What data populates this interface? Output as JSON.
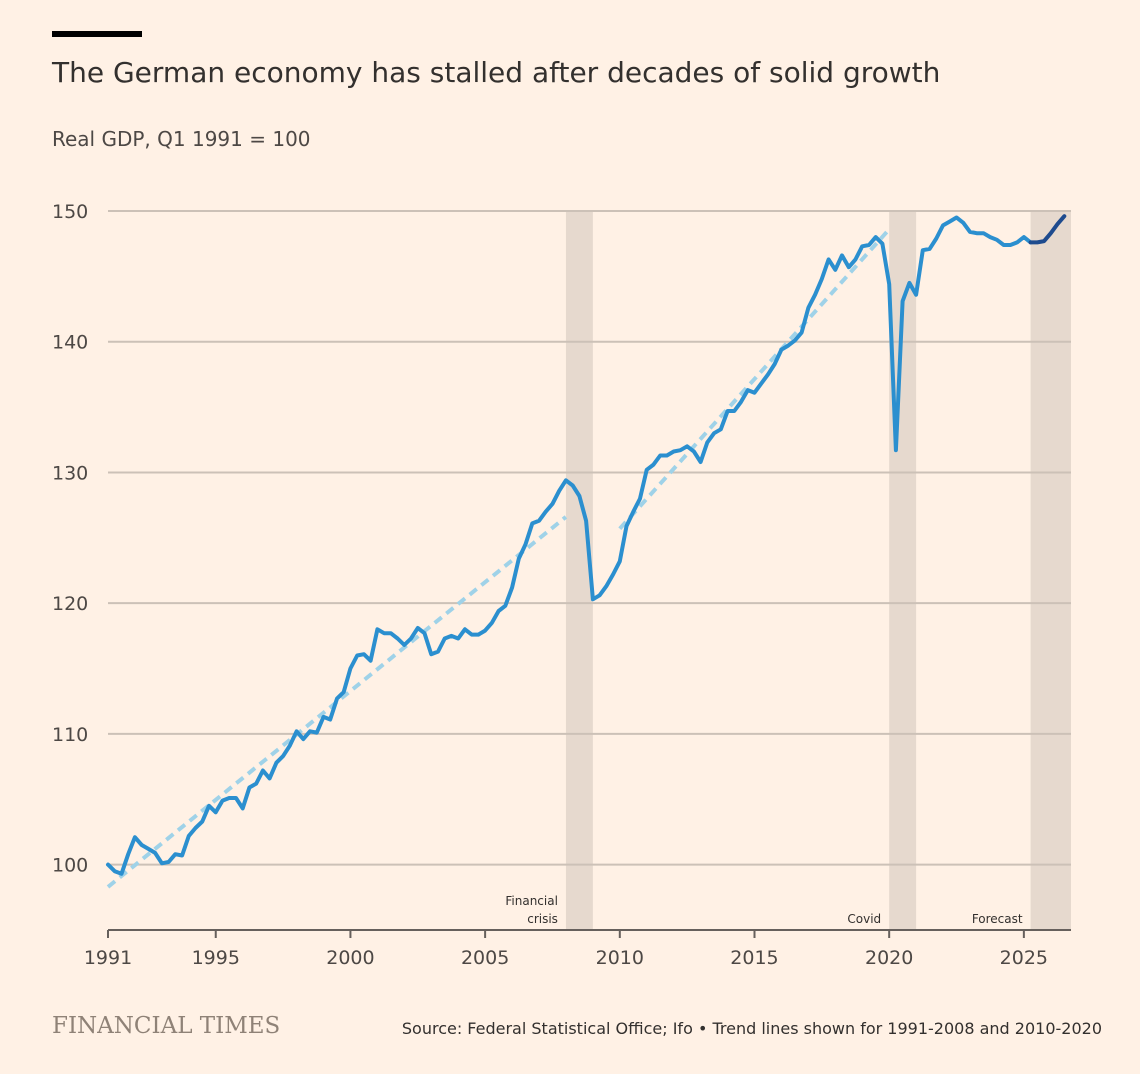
{
  "header": {
    "title": "The German economy has stalled after decades of solid growth",
    "subtitle": "Real GDP, Q1 1991 = 100"
  },
  "footer": {
    "brand": "FINANCIAL TIMES",
    "source": "Source: Federal Statistical Office; Ifo • Trend lines shown for 1991-2008 and 2010-2020"
  },
  "colors": {
    "background": "#fff1e5",
    "gridline": "#ccc1b7",
    "series": "#2b8fcf",
    "forecast_series": "#1e4b8e",
    "trend": "#9fd2e8",
    "shade": "#e6d9ce",
    "text": "#33302e"
  },
  "chart_data": {
    "type": "line",
    "title": "The German economy has stalled after decades of solid growth",
    "subtitle": "Real GDP, Q1 1991 = 100",
    "xlabel": "",
    "ylabel": "",
    "xlim": [
      1991,
      2026.75
    ],
    "ylim": [
      95,
      150
    ],
    "x_ticks": [
      "1991",
      "1995",
      "2000",
      "2005",
      "2010",
      "2015",
      "2020",
      "2025"
    ],
    "y_ticks": [
      "100",
      "110",
      "120",
      "130",
      "140",
      "150"
    ],
    "grid": true,
    "shaded_periods": [
      {
        "label": "Financial crisis",
        "start": 2008.0,
        "end": 2009.0
      },
      {
        "label": "Covid",
        "start": 2020.0,
        "end": 2021.0
      },
      {
        "label": "Forecast",
        "start": 2025.25,
        "end": 2026.75
      }
    ],
    "series": [
      {
        "x": [
          1991.0,
          1991.25,
          1991.5,
          1991.75,
          1992.0,
          1992.25,
          1992.5,
          1992.75,
          1993.0,
          1993.25,
          1993.5,
          1993.75,
          1994.0,
          1994.25,
          1994.5,
          1994.75,
          1995.0,
          1995.25,
          1995.5,
          1995.75,
          1996.0,
          1996.25,
          1996.5,
          1996.75,
          1997.0,
          1997.25,
          1997.5,
          1997.75,
          1998.0,
          1998.25,
          1998.5,
          1998.75,
          1999.0,
          1999.25,
          1999.5,
          1999.75,
          2000.0,
          2000.25,
          2000.5,
          2000.75,
          2001.0,
          2001.25,
          2001.5,
          2001.75,
          2002.0,
          2002.25,
          2002.5,
          2002.75,
          2003.0,
          2003.25,
          2003.5,
          2003.75,
          2004.0,
          2004.25,
          2004.5,
          2004.75,
          2005.0,
          2005.25,
          2005.5,
          2005.75,
          2006.0,
          2006.25,
          2006.5,
          2006.75,
          2007.0,
          2007.25,
          2007.5,
          2007.75,
          2008.0,
          2008.25,
          2008.5,
          2008.75,
          2009.0,
          2009.25,
          2009.5,
          2009.75,
          2010.0,
          2010.25,
          2010.5,
          2010.75,
          2011.0,
          2011.25,
          2011.5,
          2011.75,
          2012.0,
          2012.25,
          2012.5,
          2012.75,
          2013.0,
          2013.25,
          2013.5,
          2013.75,
          2014.0,
          2014.25,
          2014.5,
          2014.75,
          2015.0,
          2015.25,
          2015.5,
          2015.75,
          2016.0,
          2016.25,
          2016.5,
          2016.75,
          2017.0,
          2017.25,
          2017.5,
          2017.75,
          2018.0,
          2018.25,
          2018.5,
          2018.75,
          2019.0,
          2019.25,
          2019.5,
          2019.75,
          2020.0,
          2020.25,
          2020.5,
          2020.75,
          2021.0,
          2021.25,
          2021.5,
          2021.75,
          2022.0,
          2022.25,
          2022.5,
          2022.75,
          2023.0,
          2023.25,
          2023.5,
          2023.75,
          2024.0,
          2024.25,
          2024.5,
          2024.75,
          2025.0,
          2025.25
        ],
        "values": [
          100.0,
          99.5,
          99.3,
          100.8,
          102.1,
          101.5,
          101.2,
          100.9,
          100.1,
          100.2,
          100.8,
          100.7,
          102.2,
          102.8,
          103.3,
          104.5,
          104.0,
          104.9,
          105.1,
          105.1,
          104.3,
          105.9,
          106.2,
          107.2,
          106.6,
          107.8,
          108.3,
          109.1,
          110.2,
          109.6,
          110.2,
          110.1,
          111.3,
          111.1,
          112.7,
          113.2,
          115.0,
          116.0,
          116.1,
          115.6,
          118.0,
          117.7,
          117.7,
          117.3,
          116.8,
          117.3,
          118.1,
          117.7,
          116.1,
          116.3,
          117.3,
          117.5,
          117.3,
          118.0,
          117.6,
          117.6,
          117.9,
          118.5,
          119.4,
          119.8,
          121.2,
          123.4,
          124.5,
          126.1,
          126.3,
          127.0,
          127.6,
          128.6,
          129.4,
          129.0,
          128.2,
          126.3,
          120.3,
          120.6,
          121.3,
          122.2,
          123.2,
          125.9,
          127.0,
          128.0,
          130.2,
          130.6,
          131.3,
          131.3,
          131.6,
          131.7,
          132.0,
          131.6,
          130.8,
          132.3,
          133.0,
          133.3,
          134.7,
          134.7,
          135.4,
          136.3,
          136.1,
          136.8,
          137.5,
          138.3,
          139.4,
          139.7,
          140.1,
          140.7,
          142.6,
          143.6,
          144.8,
          146.3,
          145.5,
          146.6,
          145.7,
          146.3,
          147.3,
          147.4,
          148.0,
          147.5,
          144.4,
          131.7,
          143.1,
          144.5,
          143.6,
          147.0,
          147.1,
          147.9,
          148.9,
          149.2,
          149.5,
          149.1,
          148.4,
          148.3,
          148.3,
          148.0,
          147.8,
          147.4,
          147.4,
          147.6,
          148.0,
          147.6
        ]
      },
      {
        "x": [
          2025.25,
          2025.5,
          2025.75,
          2026.0,
          2026.25,
          2026.5
        ],
        "values": [
          147.6,
          147.6,
          147.7,
          148.3,
          149.0,
          149.6
        ]
      },
      {
        "x": [
          1991.0,
          2008.0
        ],
        "values": [
          98.3,
          126.6
        ]
      },
      {
        "x": [
          2010.0,
          2020.0
        ],
        "values": [
          125.7,
          148.6
        ]
      }
    ]
  }
}
